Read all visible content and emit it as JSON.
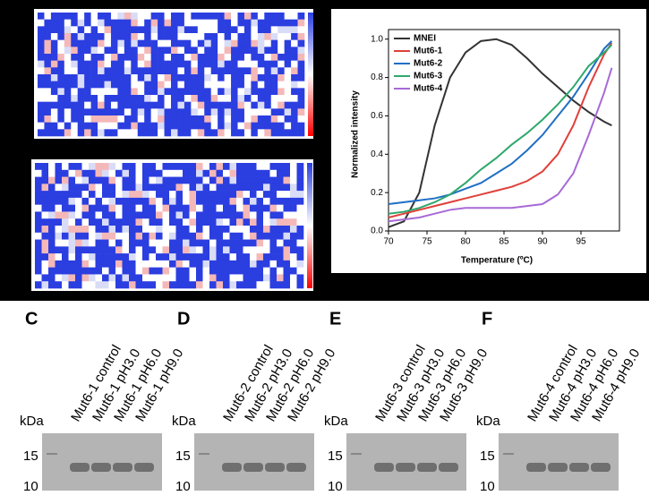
{
  "chart_data": {
    "type": "line",
    "xlabel": "Temperature (ºC)",
    "ylabel": "Normalized intensity",
    "x": [
      70,
      72,
      74,
      76,
      78,
      80,
      82,
      84,
      86,
      88,
      90,
      92,
      94,
      96,
      98,
      99
    ],
    "xlim": [
      70,
      100
    ],
    "xticks": [
      70,
      75,
      80,
      85,
      90,
      95
    ],
    "ylim": [
      0,
      1.05
    ],
    "yticks": [
      {
        "value": 0,
        "label": "0.0"
      },
      {
        "value": 0.2,
        "label": "0.2"
      },
      {
        "value": 0.4,
        "label": "0.4"
      },
      {
        "value": 0.6,
        "label": "0.6"
      },
      {
        "value": 0.8,
        "label": "0.8"
      },
      {
        "value": 1,
        "label": "1.0"
      }
    ],
    "legend": "top-left",
    "series": [
      {
        "name": "MNEI",
        "color": "#333333",
        "values": [
          0.02,
          0.05,
          0.2,
          0.55,
          0.8,
          0.93,
          0.99,
          1.0,
          0.97,
          0.9,
          0.82,
          0.75,
          0.68,
          0.62,
          0.57,
          0.55
        ]
      },
      {
        "name": "Mut6-1",
        "color": "#e0403a",
        "values": [
          0.07,
          0.09,
          0.11,
          0.13,
          0.15,
          0.17,
          0.19,
          0.21,
          0.23,
          0.26,
          0.31,
          0.4,
          0.55,
          0.75,
          0.92,
          0.98
        ]
      },
      {
        "name": "Mut6-2",
        "color": "#1f6fc5",
        "values": [
          0.14,
          0.15,
          0.16,
          0.17,
          0.19,
          0.22,
          0.25,
          0.3,
          0.35,
          0.42,
          0.5,
          0.6,
          0.7,
          0.82,
          0.95,
          0.99
        ]
      },
      {
        "name": "Mut6-3",
        "color": "#2ea86b",
        "values": [
          0.09,
          0.1,
          0.12,
          0.15,
          0.19,
          0.25,
          0.32,
          0.38,
          0.45,
          0.51,
          0.58,
          0.66,
          0.75,
          0.86,
          0.93,
          0.97
        ]
      },
      {
        "name": "Mut6-4",
        "color": "#a86ad6",
        "values": [
          0.05,
          0.06,
          0.07,
          0.09,
          0.11,
          0.12,
          0.12,
          0.12,
          0.12,
          0.13,
          0.14,
          0.19,
          0.3,
          0.5,
          0.72,
          0.85
        ]
      }
    ]
  },
  "gels": [
    {
      "letter": "C",
      "lanes": [
        "Mut6-1 control",
        "Mut6-1 pH3.0",
        "Mut6-1 pH6.0",
        "Mut6-1 pH9.0"
      ],
      "unit": "kDa",
      "markers": [
        "15",
        "10"
      ]
    },
    {
      "letter": "D",
      "lanes": [
        "Mut6-2 control",
        "Mut6-2 pH3.0",
        "Mut6-2 pH6.0",
        "Mut6-2 pH9.0"
      ],
      "unit": "kDa",
      "markers": [
        "15",
        "10"
      ]
    },
    {
      "letter": "E",
      "lanes": [
        "Mut6-3 control",
        "Mut6-3 pH3.0",
        "Mut6-3 pH6.0",
        "Mut6-3 pH9.0"
      ],
      "unit": "kDa",
      "markers": [
        "15",
        "10"
      ]
    },
    {
      "letter": "F",
      "lanes": [
        "Mut6-4 control",
        "Mut6-4 pH3.0",
        "Mut6-4 pH6.0",
        "Mut6-4 pH9.0"
      ],
      "unit": "kDa",
      "markers": [
        "15",
        "10"
      ]
    }
  ]
}
